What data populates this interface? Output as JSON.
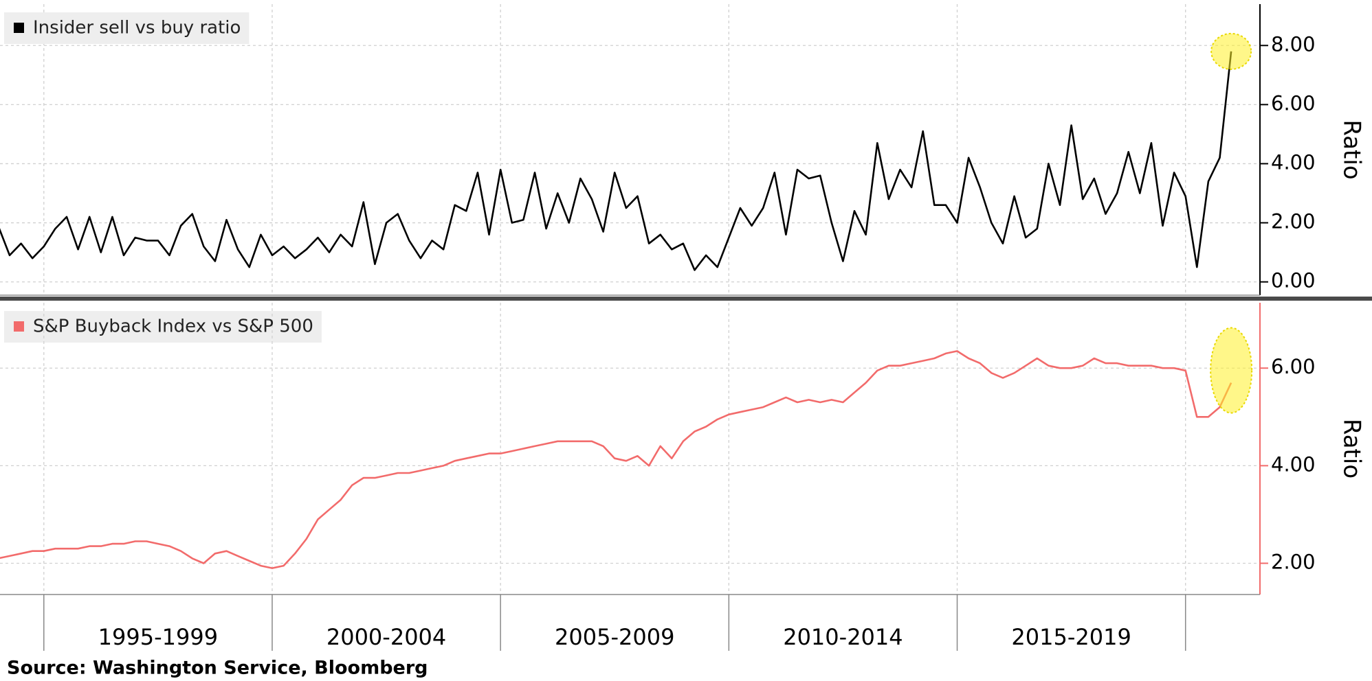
{
  "chart_data": [
    {
      "type": "line",
      "ylabel": "Ratio",
      "xlim": [
        1994.04,
        2021.63
      ],
      "xticks": [
        1995,
        2000,
        2005,
        2010,
        2015,
        2020
      ],
      "ylim": [
        -0.45,
        9.4
      ],
      "yticks": [
        {
          "value": 0,
          "label": "0.00"
        },
        {
          "value": 2,
          "label": "2.00"
        },
        {
          "value": 4,
          "label": "4.00"
        },
        {
          "value": 6,
          "label": "6.00"
        },
        {
          "value": 8,
          "label": "8.00"
        }
      ],
      "grid": true,
      "legend": "top-left",
      "x": [
        1994,
        1994.25,
        1994.5,
        1994.75,
        1995,
        1995.25,
        1995.5,
        1995.75,
        1996,
        1996.25,
        1996.5,
        1996.75,
        1997,
        1997.25,
        1997.5,
        1997.75,
        1998,
        1998.25,
        1998.5,
        1998.75,
        1999,
        1999.25,
        1999.5,
        1999.75,
        2000,
        2000.25,
        2000.5,
        2000.75,
        2001,
        2001.25,
        2001.5,
        2001.75,
        2002,
        2002.25,
        2002.5,
        2002.75,
        2003,
        2003.25,
        2003.5,
        2003.75,
        2004,
        2004.25,
        2004.5,
        2004.75,
        2005,
        2005.25,
        2005.5,
        2005.75,
        2006,
        2006.25,
        2006.5,
        2006.75,
        2007,
        2007.25,
        2007.5,
        2007.75,
        2008,
        2008.25,
        2008.5,
        2008.75,
        2009,
        2009.25,
        2009.5,
        2009.75,
        2010,
        2010.25,
        2010.5,
        2010.75,
        2011,
        2011.25,
        2011.5,
        2011.75,
        2012,
        2012.25,
        2012.5,
        2012.75,
        2013,
        2013.25,
        2013.5,
        2013.75,
        2014,
        2014.25,
        2014.5,
        2014.75,
        2015,
        2015.25,
        2015.5,
        2015.75,
        2016,
        2016.25,
        2016.5,
        2016.75,
        2017,
        2017.25,
        2017.5,
        2017.75,
        2018,
        2018.25,
        2018.5,
        2018.75,
        2019,
        2019.25,
        2019.5,
        2019.75,
        2020,
        2020.25,
        2020.5,
        2020.75,
        2021
      ],
      "series": [
        {
          "name": "Insider sell vs buy ratio",
          "color": "#000000",
          "values": [
            1.9,
            0.9,
            1.3,
            0.8,
            1.2,
            1.8,
            2.2,
            1.1,
            2.2,
            1.0,
            2.2,
            0.9,
            1.5,
            1.4,
            1.4,
            0.9,
            1.9,
            2.3,
            1.2,
            0.7,
            2.1,
            1.1,
            0.5,
            1.6,
            0.9,
            1.2,
            0.8,
            1.1,
            1.5,
            1.0,
            1.6,
            1.2,
            2.7,
            0.6,
            2.0,
            2.3,
            1.4,
            0.8,
            1.4,
            1.1,
            2.6,
            2.4,
            3.7,
            1.6,
            3.8,
            2.0,
            2.1,
            3.7,
            1.8,
            3.0,
            2.0,
            3.5,
            2.8,
            1.7,
            3.7,
            2.5,
            2.9,
            1.3,
            1.6,
            1.1,
            1.3,
            0.4,
            0.9,
            0.5,
            1.5,
            2.5,
            1.9,
            2.5,
            3.7,
            1.6,
            3.8,
            3.5,
            3.6,
            2.0,
            0.7,
            2.4,
            1.6,
            4.7,
            2.8,
            3.8,
            3.2,
            5.1,
            2.6,
            2.6,
            2.0,
            4.2,
            3.2,
            2.0,
            1.3,
            2.9,
            1.5,
            1.8,
            4.0,
            2.6,
            5.3,
            2.8,
            3.5,
            2.3,
            3.0,
            4.4,
            3.0,
            4.7,
            1.9,
            3.7,
            2.9,
            0.5,
            3.4,
            4.2,
            7.8
          ]
        }
      ]
    },
    {
      "type": "line",
      "ylabel": "Ratio",
      "xlim": [
        1994.04,
        2021.63
      ],
      "xticks": [
        1995,
        2000,
        2005,
        2010,
        2015,
        2020
      ],
      "categories": [
        "1995-1999",
        "2000-2004",
        "2005-2009",
        "2010-2014",
        "2015-2019"
      ],
      "ylim": [
        1.36,
        7.34
      ],
      "yticks": [
        {
          "value": 2,
          "label": "2.00"
        },
        {
          "value": 4,
          "label": "4.00"
        },
        {
          "value": 6,
          "label": "6.00"
        }
      ],
      "grid": true,
      "legend": "top-left",
      "x": [
        1994,
        1994.25,
        1994.5,
        1994.75,
        1995,
        1995.25,
        1995.5,
        1995.75,
        1996,
        1996.25,
        1996.5,
        1996.75,
        1997,
        1997.25,
        1997.5,
        1997.75,
        1998,
        1998.25,
        1998.5,
        1998.75,
        1999,
        1999.25,
        1999.5,
        1999.75,
        2000,
        2000.25,
        2000.5,
        2000.75,
        2001,
        2001.25,
        2001.5,
        2001.75,
        2002,
        2002.25,
        2002.5,
        2002.75,
        2003,
        2003.25,
        2003.5,
        2003.75,
        2004,
        2004.25,
        2004.5,
        2004.75,
        2005,
        2005.25,
        2005.5,
        2005.75,
        2006,
        2006.25,
        2006.5,
        2006.75,
        2007,
        2007.25,
        2007.5,
        2007.75,
        2008,
        2008.25,
        2008.5,
        2008.75,
        2009,
        2009.25,
        2009.5,
        2009.75,
        2010,
        2010.25,
        2010.5,
        2010.75,
        2011,
        2011.25,
        2011.5,
        2011.75,
        2012,
        2012.25,
        2012.5,
        2012.75,
        2013,
        2013.25,
        2013.5,
        2013.75,
        2014,
        2014.25,
        2014.5,
        2014.75,
        2015,
        2015.25,
        2015.5,
        2015.75,
        2016,
        2016.25,
        2016.5,
        2016.75,
        2017,
        2017.25,
        2017.5,
        2017.75,
        2018,
        2018.25,
        2018.5,
        2018.75,
        2019,
        2019.25,
        2019.5,
        2019.75,
        2020,
        2020.25,
        2020.5,
        2020.75,
        2021
      ],
      "series": [
        {
          "name": "S&P Buyback Index vs S&P 500",
          "color": "#f26b6b",
          "values": [
            2.1,
            2.15,
            2.2,
            2.25,
            2.25,
            2.3,
            2.3,
            2.3,
            2.35,
            2.35,
            2.4,
            2.4,
            2.45,
            2.45,
            2.4,
            2.35,
            2.25,
            2.1,
            2.0,
            2.2,
            2.25,
            2.15,
            2.05,
            1.95,
            1.9,
            1.95,
            2.2,
            2.5,
            2.9,
            3.1,
            3.3,
            3.6,
            3.75,
            3.75,
            3.8,
            3.85,
            3.85,
            3.9,
            3.95,
            4.0,
            4.1,
            4.15,
            4.2,
            4.25,
            4.25,
            4.3,
            4.35,
            4.4,
            4.45,
            4.5,
            4.5,
            4.5,
            4.5,
            4.4,
            4.15,
            4.1,
            4.2,
            4.0,
            4.4,
            4.15,
            4.5,
            4.7,
            4.8,
            4.95,
            5.05,
            5.1,
            5.15,
            5.2,
            5.3,
            5.4,
            5.3,
            5.35,
            5.3,
            5.35,
            5.3,
            5.5,
            5.7,
            5.95,
            6.05,
            6.05,
            6.1,
            6.15,
            6.2,
            6.3,
            6.35,
            6.2,
            6.1,
            5.9,
            5.8,
            5.9,
            6.05,
            6.2,
            6.05,
            6.0,
            6.0,
            6.05,
            6.2,
            6.1,
            6.1,
            6.05,
            6.05,
            6.05,
            6.0,
            6.0,
            5.95,
            5.0,
            5.0,
            5.2,
            5.7
          ]
        }
      ]
    }
  ],
  "source": "Source: Washington Service, Bloomberg"
}
